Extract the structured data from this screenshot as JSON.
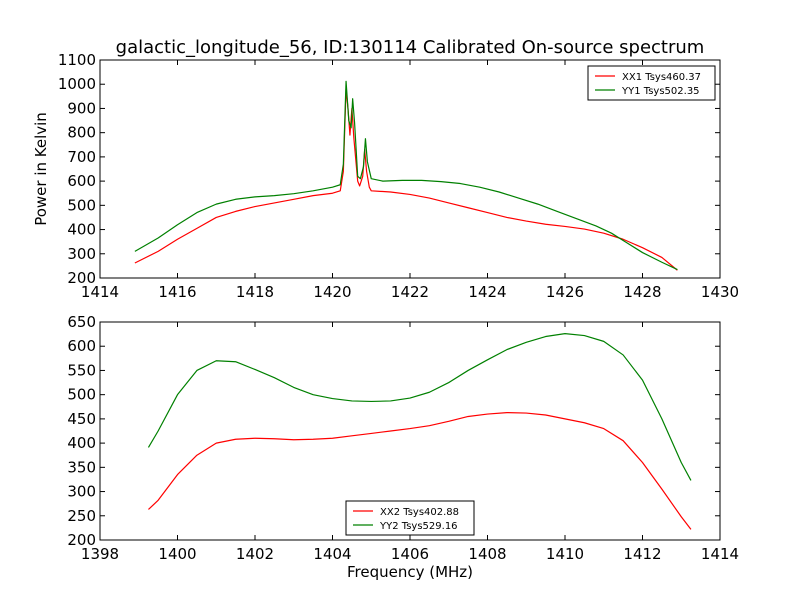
{
  "chart_data": [
    {
      "type": "line",
      "title": "galactic_longitude_56, ID:130114 Calibrated On-source spectrum",
      "xlabel": "",
      "ylabel": "Power in Kelvin",
      "xlim": [
        1414,
        1430
      ],
      "ylim": [
        200,
        1100
      ],
      "xticks": [
        1414,
        1416,
        1418,
        1420,
        1422,
        1424,
        1426,
        1428,
        1430
      ],
      "yticks": [
        200,
        300,
        400,
        500,
        600,
        700,
        800,
        900,
        1000,
        1100
      ],
      "grid": false,
      "legend_position": "top-right",
      "series": [
        {
          "name": "XX1 Tsys460.37",
          "color": "#ff0000",
          "points": [
            [
              1414.9,
              262
            ],
            [
              1415.5,
              310
            ],
            [
              1416,
              360
            ],
            [
              1416.5,
              405
            ],
            [
              1417,
              450
            ],
            [
              1417.5,
              475
            ],
            [
              1418,
              495
            ],
            [
              1418.5,
              510
            ],
            [
              1419,
              525
            ],
            [
              1419.5,
              540
            ],
            [
              1420,
              550
            ],
            [
              1420.2,
              560
            ],
            [
              1420.28,
              640
            ],
            [
              1420.35,
              980
            ],
            [
              1420.4,
              900
            ],
            [
              1420.45,
              790
            ],
            [
              1420.5,
              900
            ],
            [
              1420.55,
              780
            ],
            [
              1420.65,
              600
            ],
            [
              1420.7,
              580
            ],
            [
              1420.78,
              620
            ],
            [
              1420.83,
              730
            ],
            [
              1420.88,
              640
            ],
            [
              1420.95,
              575
            ],
            [
              1421,
              560
            ],
            [
              1421.5,
              555
            ],
            [
              1422,
              545
            ],
            [
              1422.5,
              530
            ],
            [
              1423,
              510
            ],
            [
              1423.5,
              490
            ],
            [
              1424,
              470
            ],
            [
              1424.5,
              450
            ],
            [
              1425,
              435
            ],
            [
              1425.5,
              422
            ],
            [
              1426,
              413
            ],
            [
              1426.5,
              402
            ],
            [
              1427,
              385
            ],
            [
              1427.5,
              360
            ],
            [
              1428,
              325
            ],
            [
              1428.5,
              285
            ],
            [
              1428.9,
              232
            ]
          ]
        },
        {
          "name": "YY1 Tsys502.35",
          "color": "#008000",
          "points": [
            [
              1414.9,
              310
            ],
            [
              1415.5,
              365
            ],
            [
              1416,
              420
            ],
            [
              1416.5,
              470
            ],
            [
              1417,
              505
            ],
            [
              1417.5,
              525
            ],
            [
              1418,
              535
            ],
            [
              1418.5,
              540
            ],
            [
              1419,
              548
            ],
            [
              1419.5,
              560
            ],
            [
              1420,
              575
            ],
            [
              1420.2,
              585
            ],
            [
              1420.28,
              670
            ],
            [
              1420.35,
              1012
            ],
            [
              1420.42,
              850
            ],
            [
              1420.48,
              820
            ],
            [
              1420.52,
              940
            ],
            [
              1420.57,
              840
            ],
            [
              1420.65,
              620
            ],
            [
              1420.72,
              610
            ],
            [
              1420.8,
              660
            ],
            [
              1420.85,
              775
            ],
            [
              1420.9,
              680
            ],
            [
              1421,
              610
            ],
            [
              1421.3,
              600
            ],
            [
              1421.8,
              603
            ],
            [
              1422.3,
              603
            ],
            [
              1422.8,
              598
            ],
            [
              1423.3,
              590
            ],
            [
              1423.8,
              575
            ],
            [
              1424.3,
              555
            ],
            [
              1424.8,
              530
            ],
            [
              1425.3,
              505
            ],
            [
              1425.8,
              475
            ],
            [
              1426.3,
              445
            ],
            [
              1426.8,
              415
            ],
            [
              1427.2,
              385
            ],
            [
              1427.6,
              345
            ],
            [
              1428,
              305
            ],
            [
              1428.5,
              265
            ],
            [
              1428.9,
              235
            ]
          ]
        }
      ]
    },
    {
      "type": "line",
      "title": "",
      "xlabel": "Frequency (MHz)",
      "ylabel": "",
      "xlim": [
        1398,
        1414
      ],
      "ylim": [
        200,
        650
      ],
      "xticks": [
        1398,
        1400,
        1402,
        1404,
        1406,
        1408,
        1410,
        1412,
        1414
      ],
      "yticks": [
        200,
        250,
        300,
        350,
        400,
        450,
        500,
        550,
        600,
        650
      ],
      "grid": false,
      "legend_position": "lower-center",
      "series": [
        {
          "name": "XX2 Tsys402.88",
          "color": "#ff0000",
          "points": [
            [
              1399.25,
              263
            ],
            [
              1399.5,
              282
            ],
            [
              1400,
              335
            ],
            [
              1400.5,
              375
            ],
            [
              1401,
              400
            ],
            [
              1401.5,
              408
            ],
            [
              1402,
              410
            ],
            [
              1402.5,
              409
            ],
            [
              1403,
              407
            ],
            [
              1403.5,
              408
            ],
            [
              1404,
              410
            ],
            [
              1404.5,
              415
            ],
            [
              1405,
              420
            ],
            [
              1405.5,
              425
            ],
            [
              1406,
              430
            ],
            [
              1406.5,
              436
            ],
            [
              1407,
              445
            ],
            [
              1407.5,
              455
            ],
            [
              1408,
              460
            ],
            [
              1408.5,
              463
            ],
            [
              1409,
              462
            ],
            [
              1409.5,
              458
            ],
            [
              1410,
              450
            ],
            [
              1410.5,
              442
            ],
            [
              1411,
              430
            ],
            [
              1411.5,
              405
            ],
            [
              1412,
              360
            ],
            [
              1412.5,
              305
            ],
            [
              1413,
              248
            ],
            [
              1413.25,
              222
            ]
          ]
        },
        {
          "name": "YY2 Tsys529.16",
          "color": "#008000",
          "points": [
            [
              1399.25,
              391
            ],
            [
              1399.5,
              425
            ],
            [
              1400,
              500
            ],
            [
              1400.5,
              550
            ],
            [
              1401,
              570
            ],
            [
              1401.5,
              568
            ],
            [
              1402,
              552
            ],
            [
              1402.5,
              535
            ],
            [
              1403,
              515
            ],
            [
              1403.5,
              500
            ],
            [
              1404,
              492
            ],
            [
              1404.5,
              487
            ],
            [
              1405,
              486
            ],
            [
              1405.5,
              487
            ],
            [
              1406,
              493
            ],
            [
              1406.5,
              505
            ],
            [
              1407,
              525
            ],
            [
              1407.5,
              550
            ],
            [
              1408,
              572
            ],
            [
              1408.5,
              593
            ],
            [
              1409,
              608
            ],
            [
              1409.5,
              620
            ],
            [
              1410,
              626
            ],
            [
              1410.5,
              622
            ],
            [
              1411,
              610
            ],
            [
              1411.5,
              582
            ],
            [
              1412,
              530
            ],
            [
              1412.5,
              450
            ],
            [
              1413,
              360
            ],
            [
              1413.25,
              323
            ]
          ]
        }
      ]
    }
  ]
}
